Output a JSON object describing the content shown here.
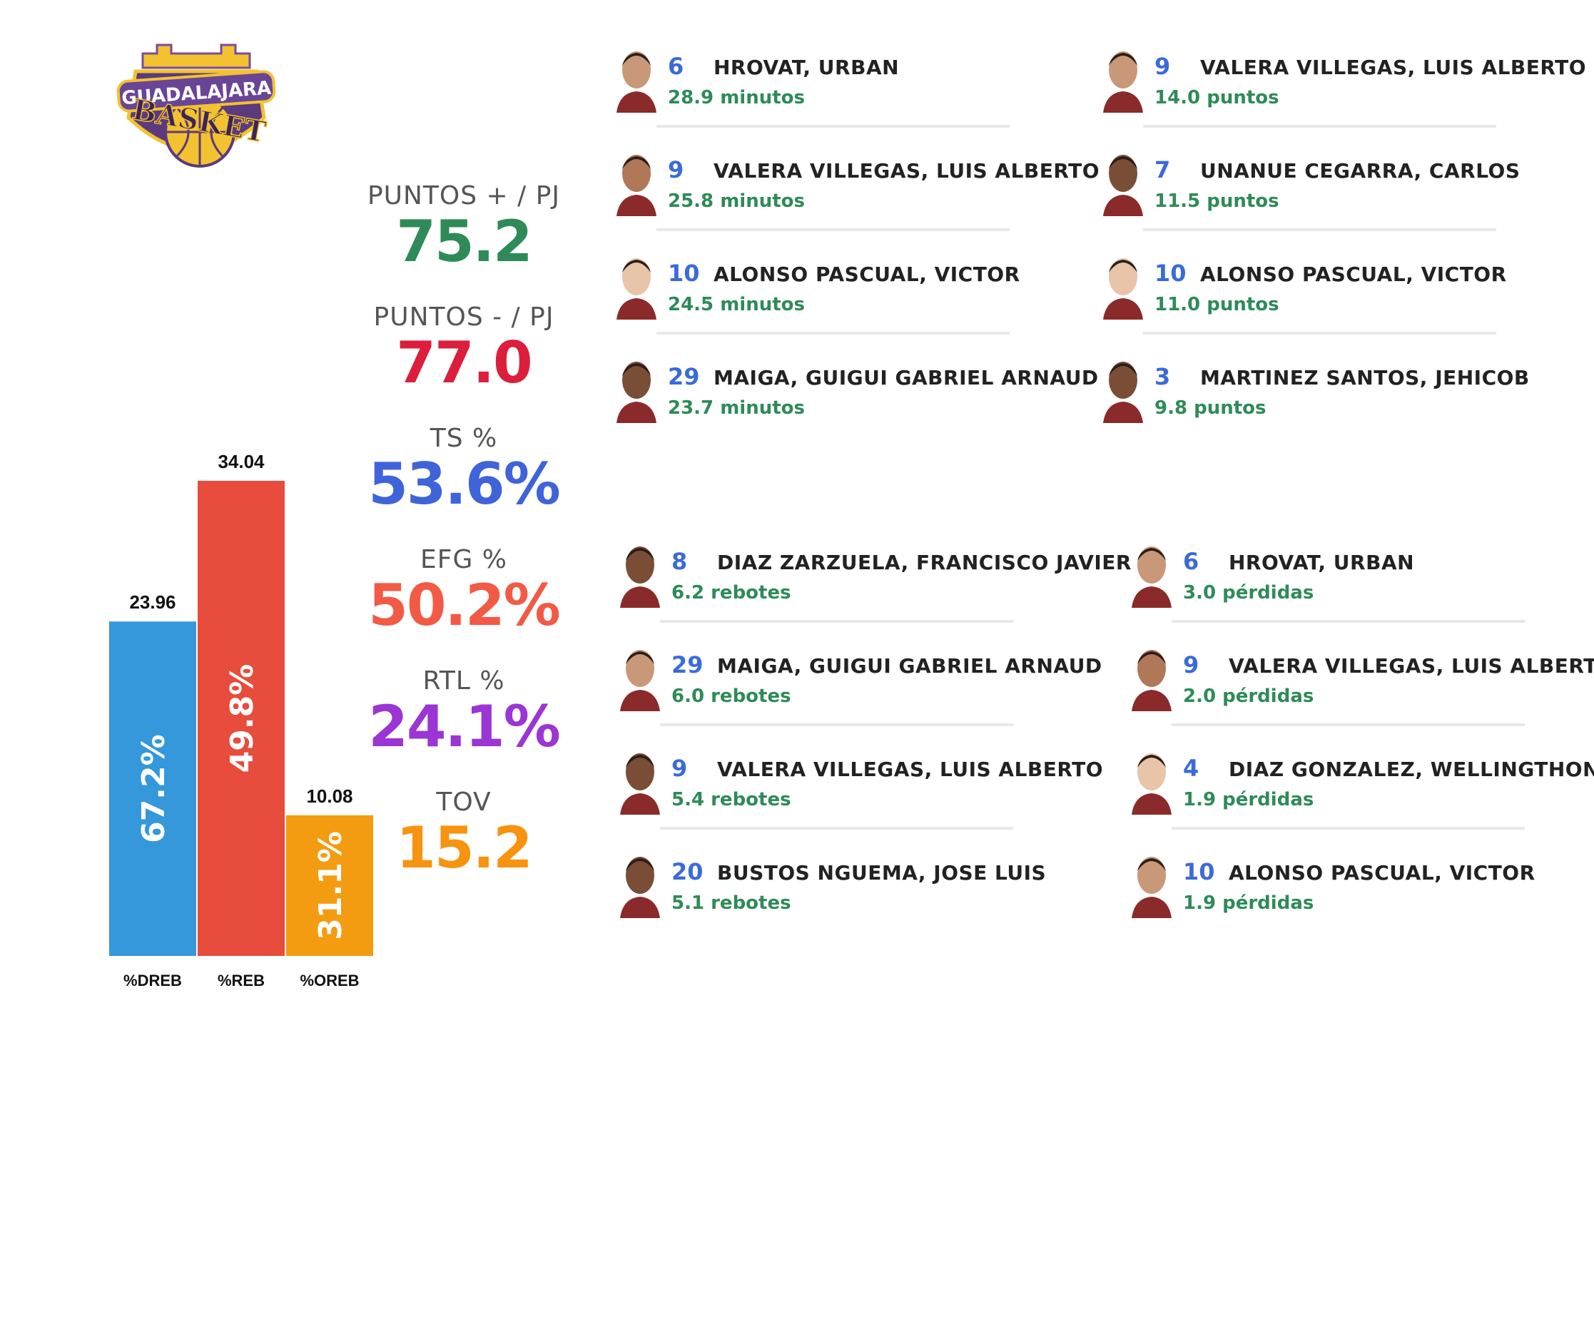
{
  "team": {
    "logo_top": "GUADALAJARA",
    "logo_bottom": "BASKET"
  },
  "chart_data": {
    "type": "bar",
    "categories": [
      "%DREB",
      "%REB",
      "%OREB"
    ],
    "values": [
      23.96,
      34.04,
      10.08
    ],
    "percent_labels": [
      "67.2%",
      "49.8%",
      "31.1%"
    ],
    "value_labels": [
      "23.96",
      "34.04",
      "10.08"
    ],
    "colors": [
      "#3498db",
      "#e74c3c",
      "#f39c12"
    ],
    "ylim": [
      0,
      34.04
    ],
    "title": "",
    "xlabel": "",
    "ylabel": ""
  },
  "stats": [
    {
      "label": "PUNTOS + / PJ",
      "value": "75.2",
      "color": "#2e8b57"
    },
    {
      "label": "PUNTOS - / PJ",
      "value": "77.0",
      "color": "#dc1e3c"
    },
    {
      "label": "TS %",
      "value": "53.6%",
      "color": "#3f63d8"
    },
    {
      "label": "EFG %",
      "value": "50.2%",
      "color": "#f25a45"
    },
    {
      "label": "RTL %",
      "value": "24.1%",
      "color": "#9b35d3"
    },
    {
      "label": "TOV",
      "value": "15.2",
      "color": "#f7930f"
    }
  ],
  "players": {
    "minutos": [
      {
        "number": "6",
        "name": "HROVAT, URBAN",
        "stat": "28.9 minutos"
      },
      {
        "number": "9",
        "name": "VALERA VILLEGAS, LUIS ALBERTO",
        "stat": "25.8 minutos"
      },
      {
        "number": "10",
        "name": "ALONSO PASCUAL, VICTOR",
        "stat": "24.5 minutos"
      },
      {
        "number": "29",
        "name": "MAIGA, GUIGUI GABRIEL ARNAUD",
        "stat": "23.7 minutos"
      }
    ],
    "puntos": [
      {
        "number": "9",
        "name": "VALERA VILLEGAS, LUIS ALBERTO",
        "stat": "14.0 puntos"
      },
      {
        "number": "7",
        "name": "UNANUE CEGARRA, CARLOS",
        "stat": "11.5 puntos"
      },
      {
        "number": "10",
        "name": "ALONSO PASCUAL, VICTOR",
        "stat": "11.0 puntos"
      },
      {
        "number": "3",
        "name": "MARTINEZ SANTOS, JEHICOB",
        "stat": "9.8 puntos"
      }
    ],
    "rebotes": [
      {
        "number": "8",
        "name": "DIAZ ZARZUELA, FRANCISCO JAVIER",
        "stat": "6.2 rebotes"
      },
      {
        "number": "29",
        "name": "MAIGA, GUIGUI GABRIEL ARNAUD",
        "stat": "6.0 rebotes"
      },
      {
        "number": "9",
        "name": "VALERA VILLEGAS, LUIS ALBERTO",
        "stat": "5.4 rebotes"
      },
      {
        "number": "20",
        "name": "BUSTOS NGUEMA, JOSE LUIS",
        "stat": "5.1 rebotes"
      }
    ],
    "perdidas": [
      {
        "number": "6",
        "name": "HROVAT, URBAN",
        "stat": "3.0 pérdidas"
      },
      {
        "number": "9",
        "name": "VALERA VILLEGAS, LUIS ALBERTO",
        "stat": "2.0 pérdidas"
      },
      {
        "number": "4",
        "name": "DIAZ GONZALEZ, WELLINGTHON",
        "stat": "1.9 pérdidas"
      },
      {
        "number": "10",
        "name": "ALONSO PASCUAL, VICTOR",
        "stat": "1.9 pérdidas"
      }
    ]
  },
  "icons": {
    "player_photo": "player-avatar-icon",
    "logo": "team-logo-icon"
  }
}
